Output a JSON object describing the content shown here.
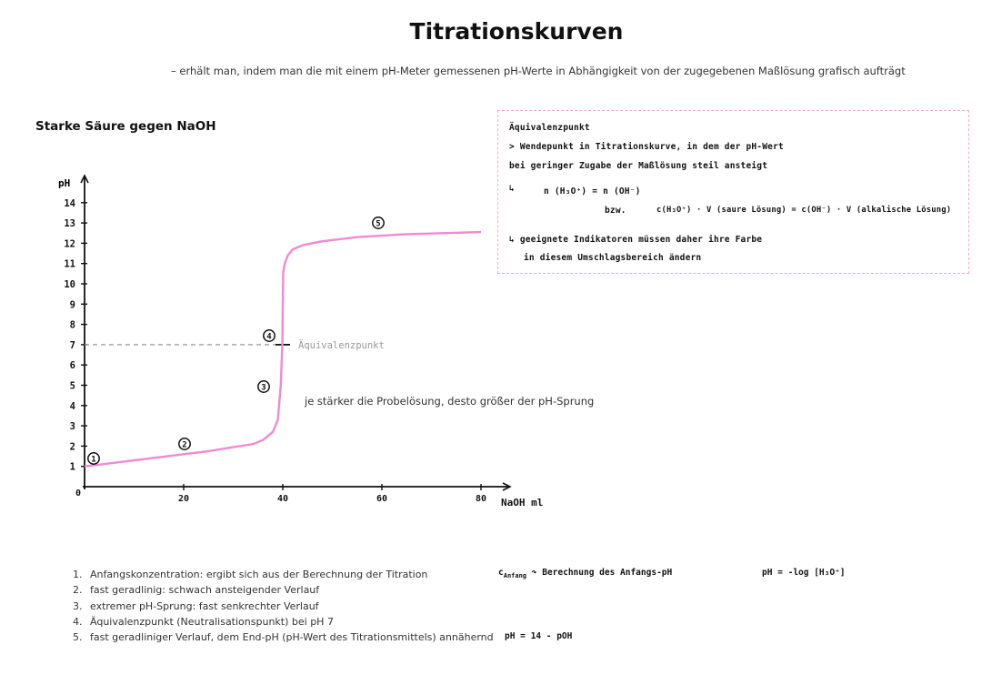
{
  "title": "Titrationskurven",
  "subtitle": "– erhält man, indem man die mit einem pH-Meter gemessenen pH-Werte in Abhängigkeit von der zugegebenen Maßlösung grafisch aufträgt",
  "section_title": "Starke Säure gegen NaOH",
  "infobox": {
    "heading": "Äquivalenzpunkt",
    "line1": "> Wendepunkt in Titrationskurve, in dem der pH-Wert",
    "line2": "bei geringer Zugabe der Maßlösung steil ansteigt",
    "arrow_symbol": "↳",
    "equation1": "n (H₃O⁺) = n (OH⁻)",
    "bzw": "bzw.",
    "equation2": "c(H₃O⁺) · V (saure Lösung) = c(OH⁻) · V (alkalische Lösung)",
    "line3": "↳ geeignete Indikatoren müssen daher ihre Farbe",
    "line4": "in diesem Umschlagsbereich ändern"
  },
  "equivalence_label": "Äquivalenzpunkt",
  "sprung_note": "je stärker die Probelösung, desto größer der pH-Sprung",
  "markers": [
    "1",
    "2",
    "3",
    "4",
    "5"
  ],
  "colors": {
    "curve": "#f08ad2",
    "box_border": "#f0a8d0",
    "dashed_line": "#999999"
  },
  "chart_data": {
    "type": "line",
    "ylabel": "pH",
    "xlabel": "NaOH ml",
    "origin_label": "0",
    "xlim": [
      0,
      80
    ],
    "ylim": [
      0,
      14
    ],
    "x_ticks": [
      "20",
      "40",
      "60",
      "80"
    ],
    "y_ticks": [
      "1",
      "2",
      "3",
      "4",
      "5",
      "6",
      "7",
      "8",
      "9",
      "10",
      "11",
      "12",
      "13",
      "14"
    ],
    "x": [
      0,
      5,
      10,
      15,
      20,
      25,
      30,
      34,
      36,
      38,
      39,
      39.6,
      39.9,
      40,
      40.1,
      40.4,
      41,
      42,
      44,
      48,
      55,
      65,
      80
    ],
    "y": [
      1.0,
      1.15,
      1.3,
      1.45,
      1.6,
      1.75,
      1.95,
      2.1,
      2.3,
      2.7,
      3.3,
      5.0,
      7.0,
      9.0,
      10.6,
      11.0,
      11.4,
      11.7,
      11.9,
      12.1,
      12.3,
      12.45,
      12.55
    ],
    "equivalence_point": {
      "x": 40,
      "y": 7
    }
  },
  "points": [
    {
      "num": "1.",
      "text": "Anfangskonzentration: ergibt sich aus der Berechnung der Titration"
    },
    {
      "num": "2.",
      "text": "fast geradlinig: schwach ansteigender Verlauf"
    },
    {
      "num": "3.",
      "text": "extremer pH-Sprung: fast senkrechter Verlauf"
    },
    {
      "num": "4.",
      "text": "Äquivalenzpunkt (Neutralisationspunkt) bei pH 7"
    },
    {
      "num": "5.",
      "text": "fast geradliniger Verlauf, dem End-pH (pH-Wert des Titrationsmittels) annähernd"
    }
  ],
  "note_start": {
    "c_label": "c",
    "c_sub": "Anfang",
    "arrow": "↷",
    "text": "Berechnung des Anfangs-pH",
    "formula": "pH = -log [H₃O⁺]"
  },
  "note_end": {
    "formula": "pH = 14 - pOH"
  }
}
